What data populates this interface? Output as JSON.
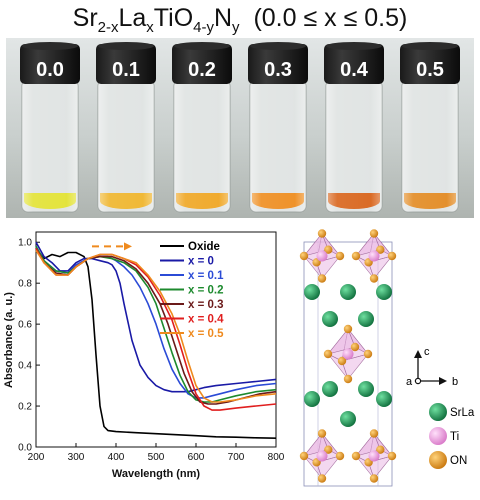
{
  "figure": {
    "title": {
      "prefix": "Sr",
      "sub1": "2-x",
      "mid1": "La",
      "sub2": "x",
      "mid2": "TiO",
      "sub3": "4-y",
      "mid3": "N",
      "sub4": "y",
      "range": "(0.0 ≤ x ≤ 0.5)"
    },
    "vials": [
      {
        "label": "0.0",
        "powder_color": "#e2e233"
      },
      {
        "label": "0.1",
        "powder_color": "#efb52c"
      },
      {
        "label": "0.2",
        "powder_color": "#efa623"
      },
      {
        "label": "0.3",
        "powder_color": "#ee8d1f"
      },
      {
        "label": "0.4",
        "powder_color": "#d8641b"
      },
      {
        "label": "0.5",
        "powder_color": "#e28a22"
      }
    ],
    "structure_legend": {
      "axis_c": "c",
      "axis_a": "a",
      "axis_b": "b",
      "items": [
        {
          "label": "SrLa",
          "color": "#1f9b5a"
        },
        {
          "label": "Ti",
          "color": "#f2a6e6"
        },
        {
          "label": "ON",
          "color": "#f0a12a"
        }
      ]
    }
  },
  "chart_data": {
    "type": "line",
    "xlabel": "Wavelength (nm)",
    "ylabel": "Absorbance (a. u.)",
    "xlim": [
      200,
      800
    ],
    "ylim": [
      0,
      1.05
    ],
    "xticks": [
      "200",
      "300",
      "400",
      "500",
      "600",
      "700",
      "800"
    ],
    "yticks": [
      "0.0",
      "0.2",
      "0.4",
      "0.6",
      "0.8",
      "1.0"
    ],
    "grid": false,
    "legend_position": "top-right",
    "series": [
      {
        "name": "Oxide",
        "color": "#000000",
        "x": [
          200,
          220,
          240,
          260,
          280,
          300,
          320,
          330,
          340,
          350,
          360,
          370,
          380,
          400,
          450,
          500,
          550,
          600,
          650,
          700,
          750,
          800
        ],
        "y": [
          0.97,
          0.92,
          0.94,
          0.93,
          0.95,
          0.95,
          0.93,
          0.88,
          0.72,
          0.45,
          0.2,
          0.1,
          0.08,
          0.075,
          0.07,
          0.065,
          0.06,
          0.055,
          0.05,
          0.048,
          0.045,
          0.043
        ]
      },
      {
        "name": "x = 0",
        "color": "#1a1aa6",
        "x": [
          200,
          220,
          240,
          260,
          280,
          300,
          320,
          340,
          360,
          380,
          390,
          400,
          410,
          420,
          440,
          460,
          480,
          500,
          520,
          540,
          560,
          580,
          600,
          620,
          650,
          700,
          750,
          800
        ],
        "y": [
          1.0,
          0.93,
          0.9,
          0.86,
          0.86,
          0.9,
          0.92,
          0.92,
          0.91,
          0.9,
          0.89,
          0.86,
          0.8,
          0.7,
          0.52,
          0.4,
          0.34,
          0.3,
          0.28,
          0.27,
          0.27,
          0.27,
          0.28,
          0.29,
          0.3,
          0.31,
          0.32,
          0.33
        ]
      },
      {
        "name": "x = 0.1",
        "color": "#2b4bd6",
        "x": [
          200,
          220,
          250,
          280,
          300,
          330,
          350,
          380,
          400,
          420,
          440,
          460,
          480,
          500,
          520,
          540,
          560,
          580,
          600,
          620,
          640,
          660,
          700,
          750,
          800
        ],
        "y": [
          0.98,
          0.91,
          0.86,
          0.85,
          0.89,
          0.92,
          0.93,
          0.93,
          0.91,
          0.88,
          0.84,
          0.78,
          0.7,
          0.6,
          0.48,
          0.38,
          0.31,
          0.26,
          0.24,
          0.24,
          0.25,
          0.26,
          0.28,
          0.3,
          0.31
        ]
      },
      {
        "name": "x = 0.2",
        "color": "#1d8a2e",
        "x": [
          200,
          220,
          250,
          280,
          300,
          330,
          360,
          390,
          420,
          450,
          480,
          500,
          520,
          540,
          560,
          580,
          600,
          620,
          640,
          660,
          700,
          750,
          800
        ],
        "y": [
          0.98,
          0.91,
          0.86,
          0.85,
          0.88,
          0.92,
          0.93,
          0.92,
          0.9,
          0.86,
          0.78,
          0.7,
          0.58,
          0.46,
          0.35,
          0.27,
          0.23,
          0.22,
          0.22,
          0.23,
          0.25,
          0.27,
          0.28
        ]
      },
      {
        "name": "x = 0.3",
        "color": "#6b1a1a",
        "x": [
          200,
          220,
          250,
          280,
          300,
          330,
          360,
          390,
          420,
          450,
          480,
          510,
          530,
          550,
          570,
          590,
          610,
          630,
          650,
          680,
          720,
          760,
          800
        ],
        "y": [
          0.97,
          0.9,
          0.85,
          0.84,
          0.88,
          0.92,
          0.93,
          0.93,
          0.91,
          0.87,
          0.8,
          0.7,
          0.6,
          0.48,
          0.36,
          0.27,
          0.22,
          0.21,
          0.21,
          0.22,
          0.24,
          0.26,
          0.27
        ]
      },
      {
        "name": "x = 0.4",
        "color": "#e01e1e",
        "x": [
          200,
          220,
          250,
          280,
          300,
          330,
          360,
          390,
          420,
          450,
          480,
          510,
          540,
          560,
          580,
          600,
          620,
          640,
          660,
          700,
          750,
          800
        ],
        "y": [
          0.97,
          0.9,
          0.84,
          0.84,
          0.88,
          0.92,
          0.94,
          0.94,
          0.92,
          0.89,
          0.83,
          0.74,
          0.62,
          0.5,
          0.37,
          0.26,
          0.2,
          0.18,
          0.18,
          0.19,
          0.2,
          0.21
        ]
      },
      {
        "name": "x = 0.5",
        "color": "#ef8a1e",
        "x": [
          200,
          220,
          250,
          280,
          300,
          330,
          360,
          390,
          420,
          450,
          480,
          510,
          540,
          560,
          580,
          600,
          620,
          640,
          660,
          700,
          750,
          800
        ],
        "y": [
          0.96,
          0.9,
          0.84,
          0.84,
          0.88,
          0.92,
          0.94,
          0.94,
          0.92,
          0.9,
          0.84,
          0.76,
          0.65,
          0.55,
          0.42,
          0.3,
          0.24,
          0.22,
          0.22,
          0.23,
          0.25,
          0.26
        ]
      }
    ],
    "annotation": {
      "type": "dashed-arrow",
      "color": "#ef8a1e",
      "x_start": 340,
      "x_end": 440,
      "y": 0.98
    }
  }
}
